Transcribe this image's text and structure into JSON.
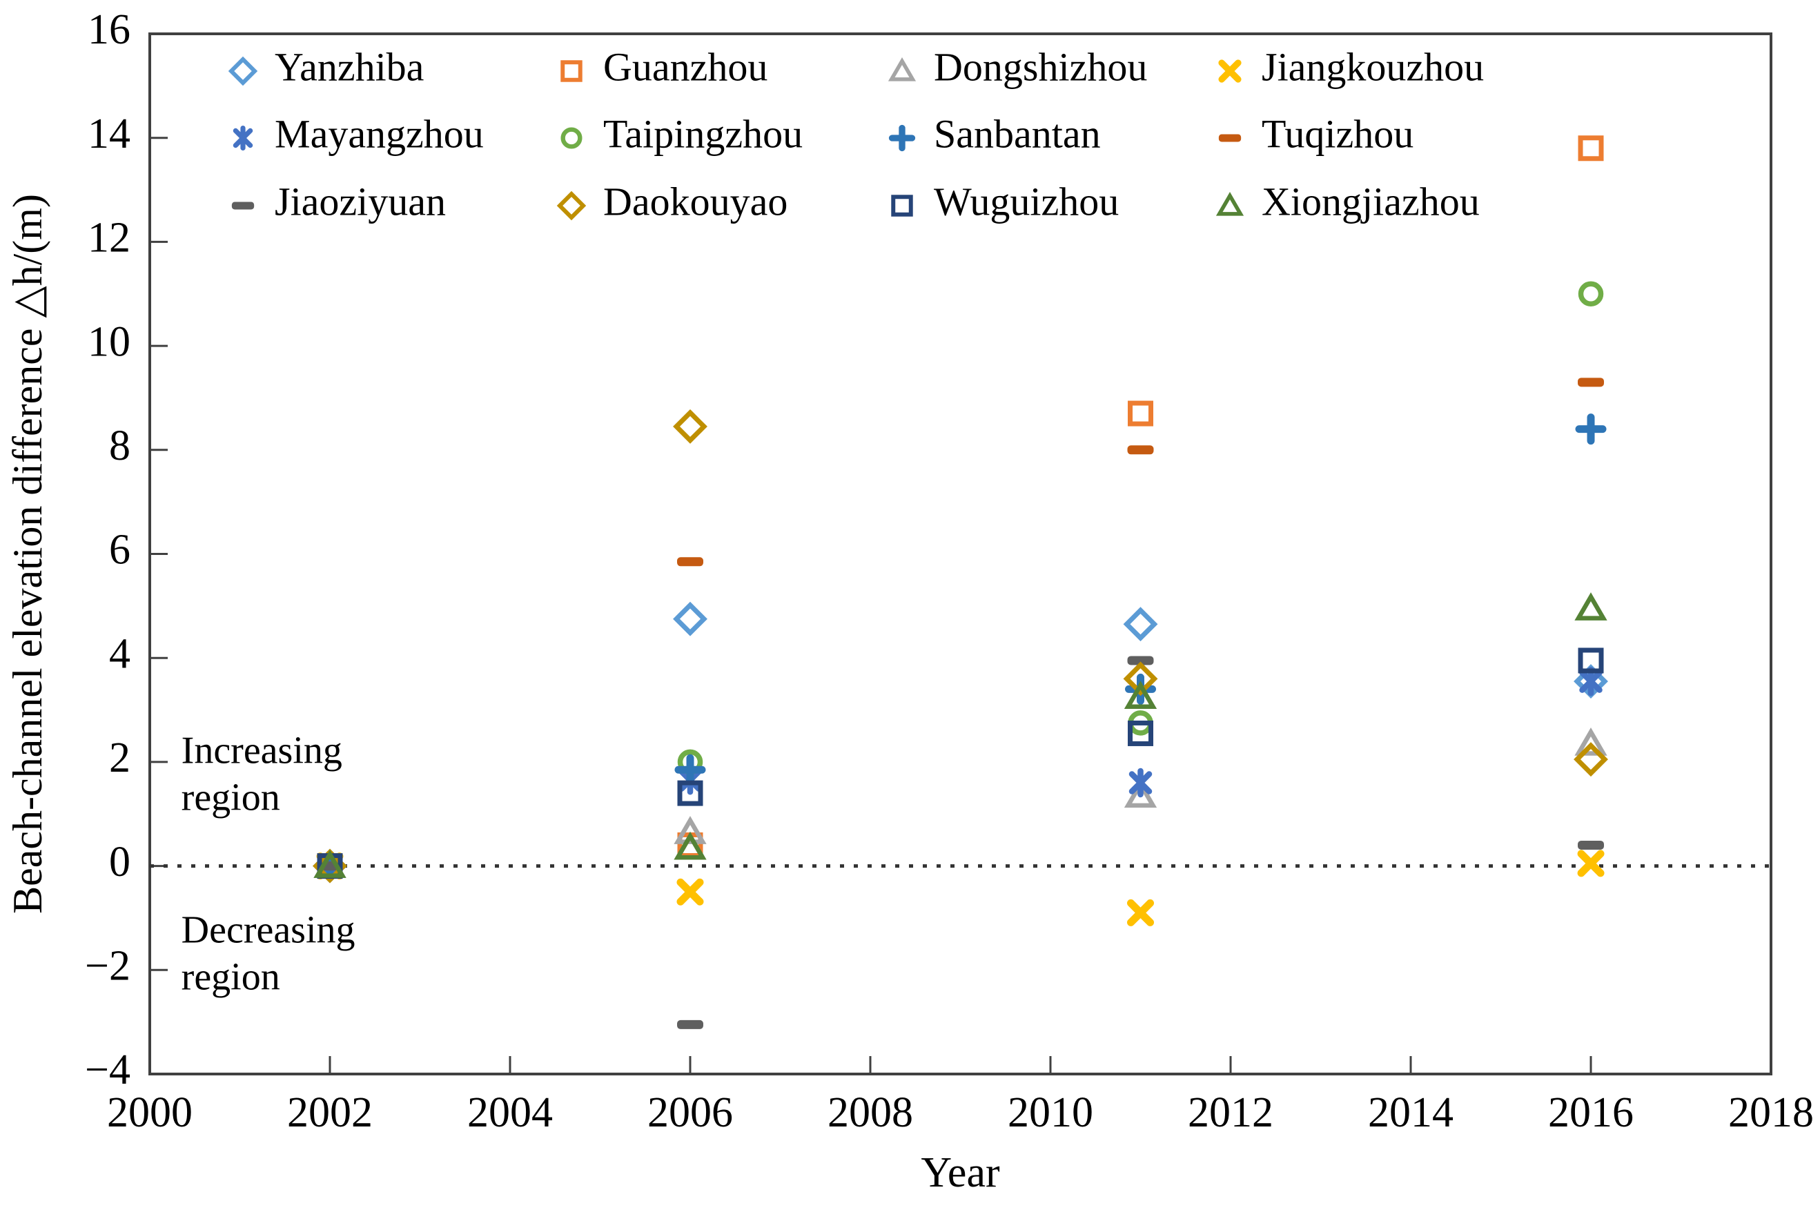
{
  "chart_data": {
    "type": "scatter",
    "title": "",
    "xlabel": "Year",
    "ylabel": "Beach-channel elevation difference △h/(m)",
    "xlim": [
      2000,
      2018
    ],
    "ylim": [
      -4,
      16
    ],
    "x_ticks": [
      2000,
      2002,
      2004,
      2006,
      2008,
      2010,
      2012,
      2014,
      2016,
      2018
    ],
    "x_tick_labels": [
      "2000",
      "2002",
      "2004",
      "2006",
      "2008",
      "2010",
      "2012",
      "2014",
      "2016",
      "2018"
    ],
    "y_ticks": [
      16,
      14,
      12,
      10,
      8,
      6,
      4,
      2,
      0,
      -2,
      -4
    ],
    "y_tick_labels": [
      "16",
      "14",
      "12",
      "10",
      "8",
      "6",
      "4",
      "2",
      "0",
      "−2",
      "−4"
    ],
    "grid": false,
    "legend_position": "top-inside",
    "zero_line": {
      "y": 0,
      "style": "dotted"
    },
    "x": [
      2002,
      2006,
      2011,
      2016
    ],
    "series": [
      {
        "name": "Yanzhiba",
        "marker": "diamond",
        "color": "#5B9BD5",
        "values": [
          0,
          4.75,
          4.65,
          3.55
        ]
      },
      {
        "name": "Guanzhou",
        "marker": "square",
        "color": "#ED7D31",
        "values": [
          0,
          0.4,
          8.7,
          13.8
        ]
      },
      {
        "name": "Dongshizhou",
        "marker": "triangle",
        "color": "#A5A5A5",
        "values": [
          0,
          0.65,
          1.35,
          2.35
        ]
      },
      {
        "name": "Jiangkouzhou",
        "marker": "x",
        "color": "#FFC000",
        "values": [
          0,
          -0.5,
          -0.9,
          0.05
        ]
      },
      {
        "name": "Mayangzhou",
        "marker": "asterisk",
        "color": "#4472C4",
        "values": [
          0,
          1.65,
          1.6,
          3.55
        ]
      },
      {
        "name": "Taipingzhou",
        "marker": "circle",
        "color": "#70AD47",
        "values": [
          0,
          2.0,
          2.75,
          11.0
        ]
      },
      {
        "name": "Sanbantan",
        "marker": "plus",
        "color": "#2E75B6",
        "values": [
          0,
          1.85,
          3.4,
          8.4
        ]
      },
      {
        "name": "Tuqizhou",
        "marker": "dash",
        "color": "#C55A11",
        "values": [
          0,
          5.85,
          8.0,
          9.3
        ]
      },
      {
        "name": "Jiaoziyuan",
        "marker": "dash",
        "color": "#5F5F5F",
        "values": [
          0,
          -3.05,
          3.95,
          0.4
        ]
      },
      {
        "name": "Daokouyao",
        "marker": "diamond",
        "color": "#BF8F00",
        "values": [
          0,
          8.45,
          3.6,
          2.05
        ]
      },
      {
        "name": "Wuguizhou",
        "marker": "square",
        "color": "#264478",
        "values": [
          0,
          1.4,
          2.55,
          3.95
        ]
      },
      {
        "name": "Xiongjiazhou",
        "marker": "triangle",
        "color": "#548235",
        "values": [
          0,
          0.35,
          3.25,
          4.95
        ]
      }
    ],
    "annotations": [
      {
        "lines": [
          "Increasing",
          "region"
        ],
        "x": 2000.35,
        "y": 2.15
      },
      {
        "lines": [
          "Decreasing",
          "region"
        ],
        "x": 2000.35,
        "y": -1.3
      }
    ]
  }
}
